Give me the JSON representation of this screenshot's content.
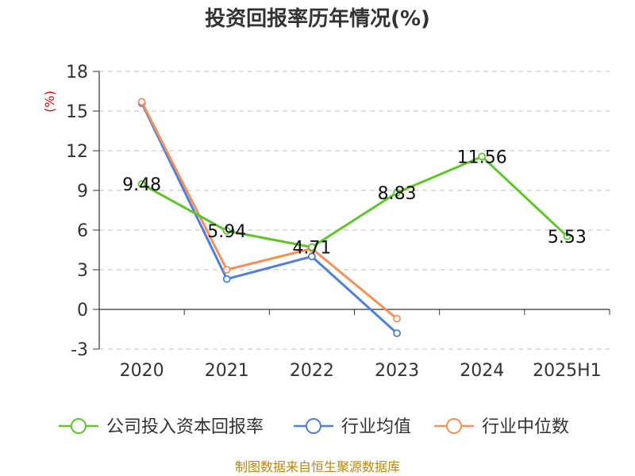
{
  "chart_data": {
    "type": "line",
    "title": "投资回报率历年情况(%)",
    "unit": "(%)",
    "categories": [
      "2020",
      "2021",
      "2022",
      "2023",
      "2024",
      "2025H1"
    ],
    "y_ticks": [
      "18",
      "15",
      "12",
      "9",
      "6",
      "3",
      "0",
      "-3"
    ],
    "ylim": [
      -3,
      18
    ],
    "grid": true,
    "legend_position": "bottom",
    "series": [
      {
        "name": "公司投入资本回报率",
        "color": "#5cc62a",
        "values": [
          9.48,
          5.94,
          4.71,
          8.83,
          11.56,
          5.53
        ],
        "labels": [
          "9.48",
          "5.94",
          "4.71",
          "8.83",
          "11.56",
          "5.53"
        ]
      },
      {
        "name": "行业均值",
        "color": "#4e7fdf",
        "values": [
          15.6,
          2.3,
          4.0,
          -1.8,
          null,
          null
        ]
      },
      {
        "name": "行业中位数",
        "color": "#f4905a",
        "values": [
          15.7,
          3.0,
          4.6,
          -0.7,
          null,
          null
        ]
      }
    ],
    "source": "制图数据来自恒生聚源数据库"
  }
}
